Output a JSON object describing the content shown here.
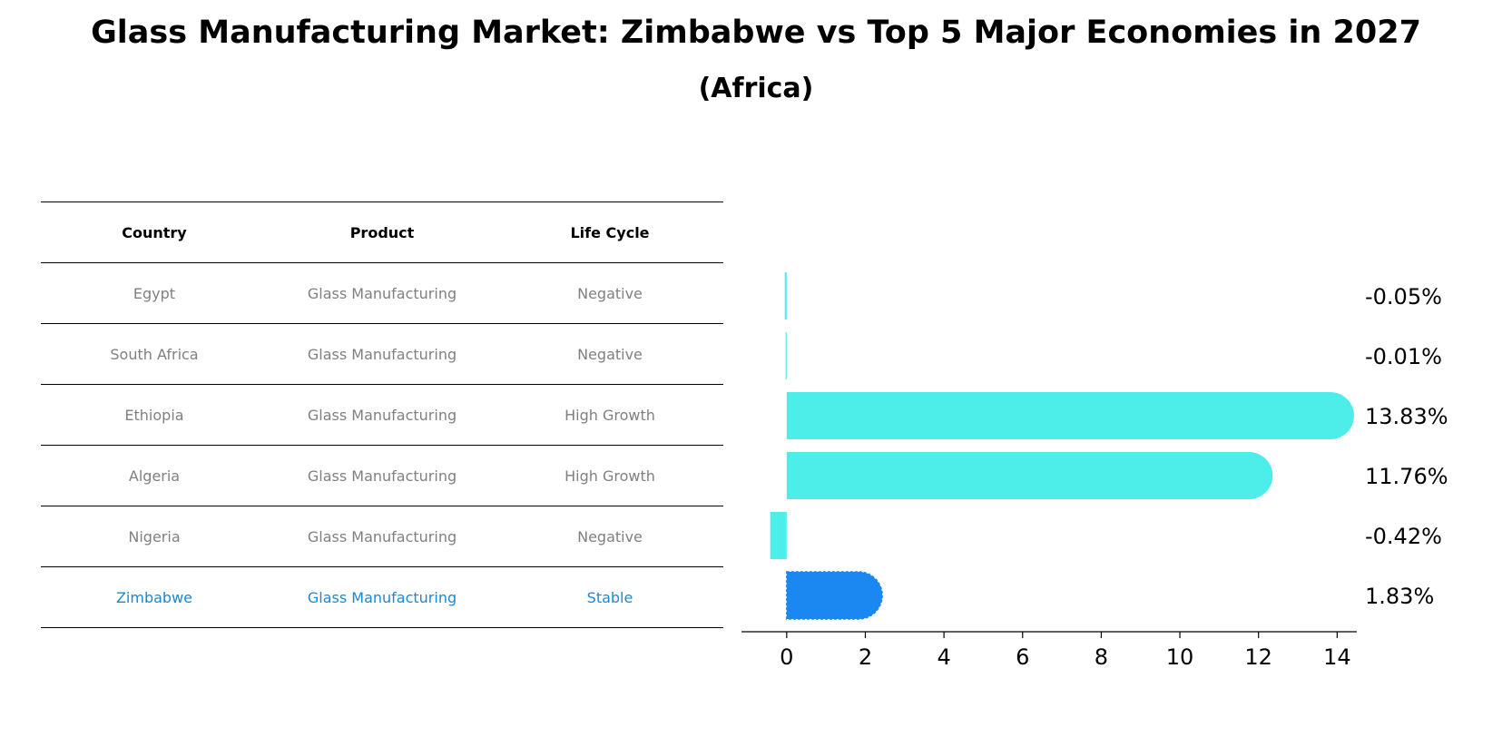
{
  "title": "Glass Manufacturing Market: Zimbabwe vs Top 5 Major Economies in 2027",
  "subtitle": "(Africa)",
  "table": {
    "headers": [
      "Country",
      "Product",
      "Life Cycle"
    ],
    "rows": [
      [
        "Egypt",
        "Glass Manufacturing",
        "Negative"
      ],
      [
        "South Africa",
        "Glass Manufacturing",
        "Negative"
      ],
      [
        "Ethiopia",
        "Glass Manufacturing",
        "High Growth"
      ],
      [
        "Algeria",
        "Glass Manufacturing",
        "High Growth"
      ],
      [
        "Nigeria",
        "Glass Manufacturing",
        "Negative"
      ],
      [
        "Zimbabwe",
        "Glass Manufacturing",
        "Stable"
      ]
    ],
    "highlight_row": "Zimbabwe"
  },
  "colors": {
    "bar": "#4deeea",
    "highlight_bar": "#1a88f0",
    "text_muted": "#808080",
    "highlight_text": "#1a88d4"
  },
  "chart_data": {
    "type": "bar",
    "orientation": "horizontal",
    "categories": [
      "Egypt",
      "South Africa",
      "Ethiopia",
      "Algeria",
      "Nigeria",
      "Zimbabwe"
    ],
    "values": [
      -0.05,
      -0.01,
      13.83,
      11.76,
      -0.42,
      1.83
    ],
    "value_labels": [
      "-0.05%",
      "-0.01%",
      "13.83%",
      "11.76%",
      "-0.42%",
      "1.83%"
    ],
    "highlight": "Zimbabwe",
    "xlim": [
      -1.15,
      14.5
    ],
    "xticks": [
      0,
      2,
      4,
      6,
      8,
      10,
      12,
      14
    ],
    "grid": false
  }
}
